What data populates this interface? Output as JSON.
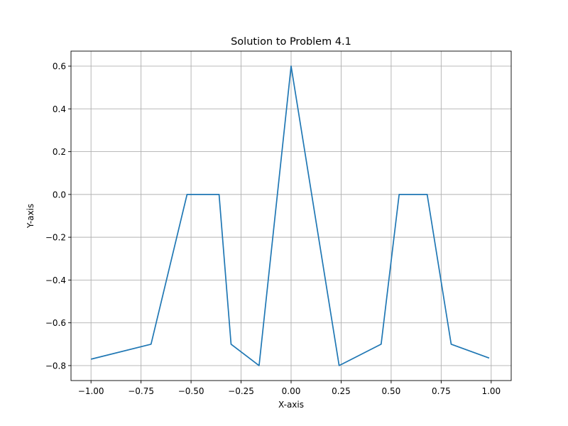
{
  "chart_data": {
    "type": "line",
    "title": "Solution to Problem 4.1",
    "xlabel": "X-axis",
    "ylabel": "Y-axis",
    "xlim": [
      -1.1,
      1.1
    ],
    "ylim": [
      -0.87,
      0.67
    ],
    "grid": true,
    "xticks": [
      -1.0,
      -0.75,
      -0.5,
      -0.25,
      0.0,
      0.25,
      0.5,
      0.75,
      1.0
    ],
    "xtick_labels": [
      "−1.00",
      "−0.75",
      "−0.50",
      "−0.25",
      "0.00",
      "0.25",
      "0.50",
      "0.75",
      "1.00"
    ],
    "yticks": [
      -0.8,
      -0.6,
      -0.4,
      -0.2,
      0.0,
      0.2,
      0.4,
      0.6
    ],
    "ytick_labels": [
      "−0.8",
      "−0.6",
      "−0.4",
      "−0.2",
      "0.0",
      "0.2",
      "0.4",
      "0.6"
    ],
    "series": [
      {
        "color": "#1f77b4",
        "x": [
          -1.0,
          -0.7,
          -0.52,
          -0.36,
          -0.3,
          -0.16,
          0.0,
          0.24,
          0.45,
          0.54,
          0.68,
          0.8,
          0.99
        ],
        "y": [
          -0.77,
          -0.7,
          0.0,
          0.0,
          -0.7,
          -0.8,
          0.6,
          -0.8,
          -0.7,
          0.0,
          0.0,
          -0.7,
          -0.765
        ]
      }
    ]
  }
}
